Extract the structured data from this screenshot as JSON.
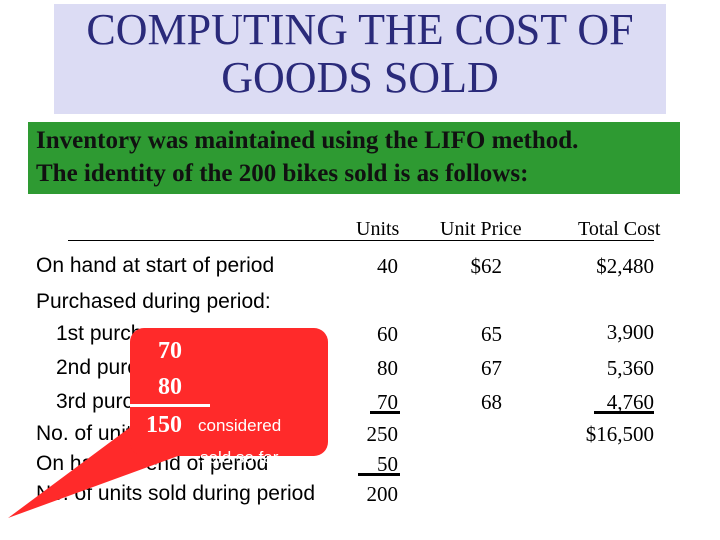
{
  "title_line1": "COMPUTING THE COST OF",
  "title_line2": "GOODS SOLD",
  "subtitle_line1": "Inventory was maintained using the LIFO method.",
  "subtitle_line2": "The identity of the 200 bikes sold is as follows:",
  "table": {
    "headers": {
      "units": "Units",
      "unit_price": "Unit Price",
      "total_cost": "Total Cost"
    },
    "rows": [
      {
        "label": "On hand at start of period",
        "units": "40",
        "unit_price": "$62",
        "total_cost": "$2,480"
      },
      {
        "label": "Purchased during period:",
        "units": "",
        "unit_price": "",
        "total_cost": ""
      },
      {
        "label": "1st purchase",
        "units": "60",
        "unit_price": "65",
        "total_cost": "3,900"
      },
      {
        "label": "2nd purchase",
        "units": "80",
        "unit_price": "67",
        "total_cost": "5,360"
      },
      {
        "label": "3rd purchase",
        "units": "70",
        "unit_price": "68",
        "total_cost": "4,760"
      },
      {
        "label": "No. of units available for sale",
        "units": "250",
        "unit_price": "",
        "total_cost": "$16,500"
      },
      {
        "label": "On hand at end of period",
        "units": "50",
        "unit_price": "",
        "total_cost": ""
      },
      {
        "label": "No. of units sold during period",
        "units": "200",
        "unit_price": "",
        "total_cost": ""
      }
    ]
  },
  "callout": {
    "value1": "70",
    "value2": "80",
    "total": "150",
    "text_line1": "considered",
    "text_line2": "sold so far",
    "color": "#ff2a2a"
  }
}
